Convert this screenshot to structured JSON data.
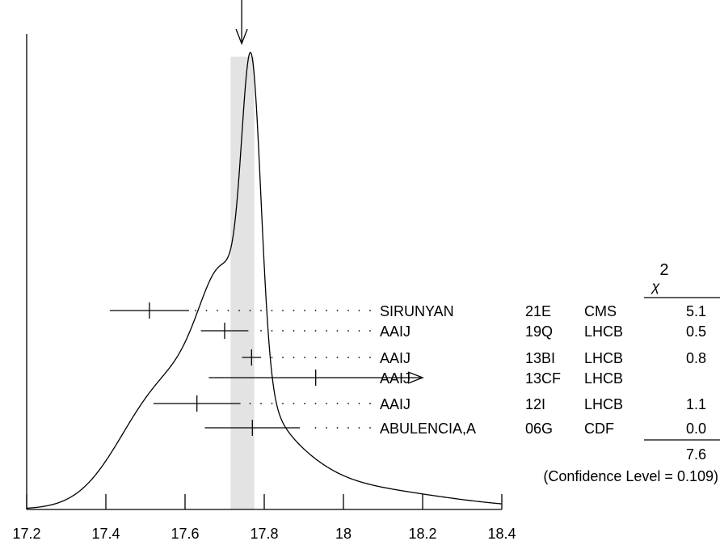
{
  "chart_data": {
    "type": "ideogram",
    "xlim": [
      17.2,
      18.4
    ],
    "xticks": [
      17.2,
      17.4,
      17.6,
      17.8,
      18.0,
      18.2,
      18.4
    ],
    "xtick_labels": [
      "17.2",
      "17.4",
      "17.6",
      "17.8",
      "18",
      "18.2",
      "18.4"
    ],
    "average": 17.765,
    "band": [
      17.715,
      17.775
    ],
    "arrow_at": 17.743,
    "chi2_header": "χ",
    "chi2_exp": "2",
    "measurements": [
      {
        "author": "SIRUNYAN",
        "code": "21E",
        "experiment": "CMS",
        "value": 17.51,
        "err": 0.1,
        "chi2": "5.1"
      },
      {
        "author": "AAIJ",
        "code": "19Q",
        "experiment": "LHCB",
        "value": 17.7,
        "err": 0.06,
        "chi2": "0.5"
      },
      {
        "author": "AAIJ",
        "code": "13BI",
        "experiment": "LHCB",
        "value": 17.768,
        "err": 0.024,
        "chi2": "0.8"
      },
      {
        "author": "AAIJ",
        "code": "13CF",
        "experiment": "LHCB",
        "value": 17.93,
        "err": 0.27,
        "chi2": "",
        "arrow": true
      },
      {
        "author": "AAIJ",
        "code": "12I",
        "experiment": "LHCB",
        "value": 17.63,
        "err": 0.11,
        "chi2": "1.1"
      },
      {
        "author": "ABULENCIA,A",
        "code": "06G",
        "experiment": "CDF",
        "value": 17.77,
        "err": 0.12,
        "chi2": "0.0"
      }
    ],
    "chi2_total": "7.6",
    "confidence_text": "(Confidence Level = 0.109)"
  }
}
